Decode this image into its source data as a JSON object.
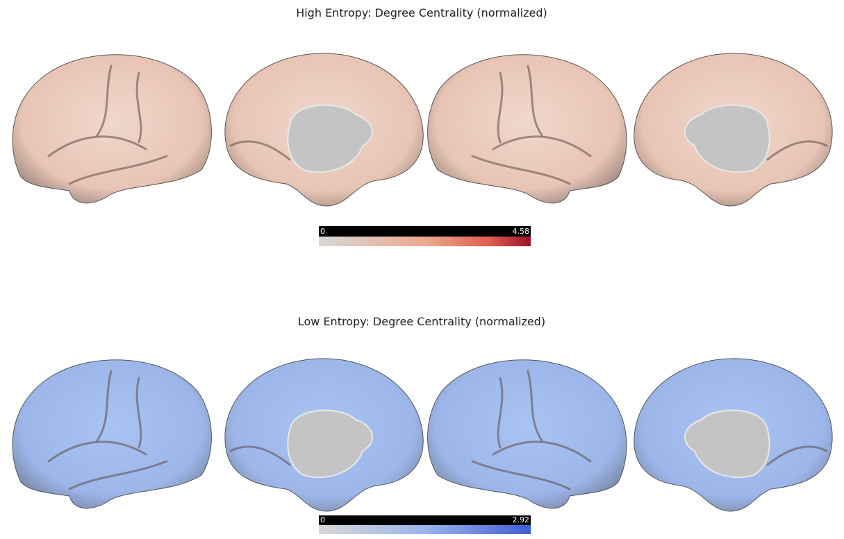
{
  "panels": [
    {
      "title": "High Entropy: Degree Centrality (normalized)",
      "colorbar": {
        "min": 0,
        "max": 4.58
      }
    },
    {
      "title": "Low Entropy: Degree Centrality (normalized)",
      "colorbar": {
        "min": 0,
        "max": 2.92
      }
    }
  ]
}
